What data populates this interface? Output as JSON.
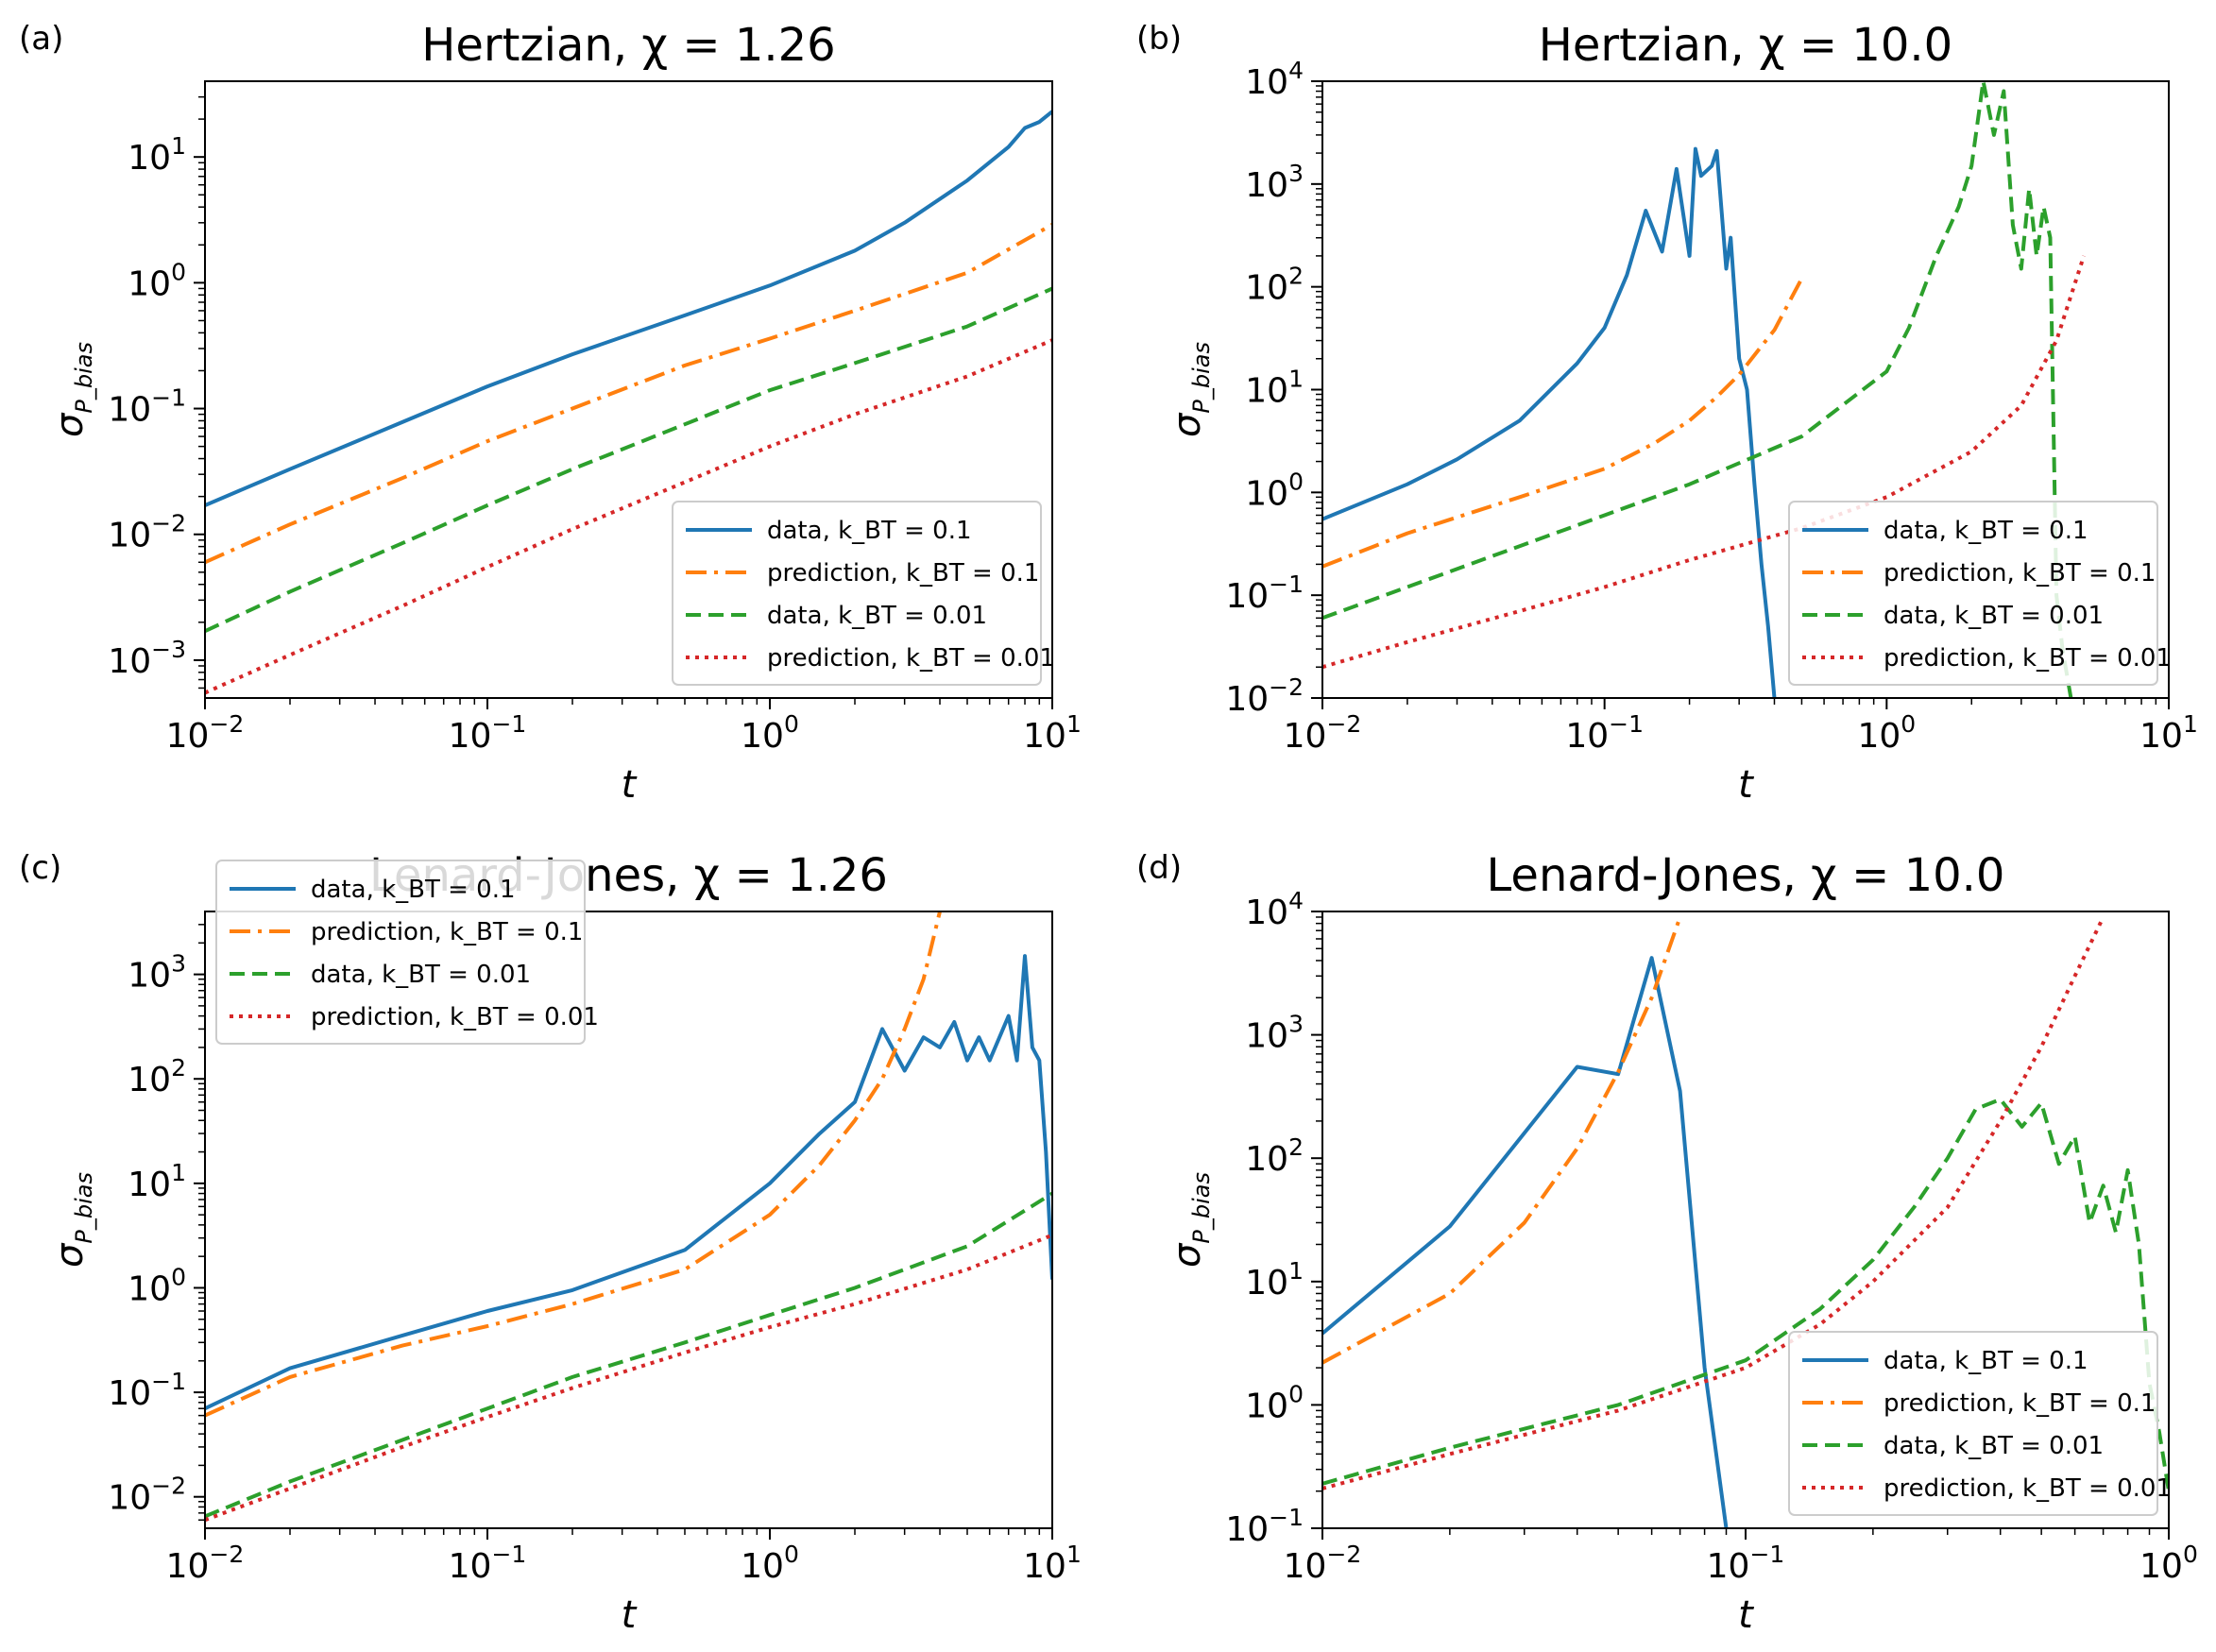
{
  "chart_data": [
    {
      "type": "line",
      "panel_label": "(a)",
      "title": "Hertzian, χ = 1.26",
      "xlabel": "t",
      "ylabel": "σ",
      "ylabel_sub": "P_bias",
      "xscale": "log",
      "yscale": "log",
      "xlim": [
        0.01,
        10
      ],
      "ylim": [
        0.0005,
        40
      ],
      "xticks": [
        {
          "value": 0.01,
          "label": "10",
          "exp": "−2"
        },
        {
          "value": 0.1,
          "label": "10",
          "exp": "−1"
        },
        {
          "value": 1,
          "label": "10",
          "exp": "0"
        },
        {
          "value": 10,
          "label": "10",
          "exp": "1"
        }
      ],
      "yticks": [
        {
          "value": 0.001,
          "label": "10",
          "exp": "−3"
        },
        {
          "value": 0.01,
          "label": "10",
          "exp": "−2"
        },
        {
          "value": 0.1,
          "label": "10",
          "exp": "−1"
        },
        {
          "value": 1,
          "label": "10",
          "exp": "0"
        },
        {
          "value": 10,
          "label": "10",
          "exp": "1"
        }
      ],
      "legend_position": "lower-right",
      "series": [
        {
          "name": "data, k_BT = 0.1",
          "style": "solid",
          "color": "#1f77b4",
          "x": [
            0.01,
            0.02,
            0.05,
            0.1,
            0.2,
            0.5,
            1,
            2,
            3,
            5,
            7,
            8,
            9,
            10
          ],
          "y": [
            0.017,
            0.033,
            0.078,
            0.15,
            0.27,
            0.55,
            0.95,
            1.8,
            3.0,
            6.5,
            12,
            17,
            19,
            23
          ]
        },
        {
          "name": "prediction, k_BT = 0.1",
          "style": "dashdot",
          "color": "#ff7f0e",
          "x": [
            0.01,
            0.02,
            0.05,
            0.1,
            0.2,
            0.5,
            1,
            2,
            5,
            10
          ],
          "y": [
            0.006,
            0.012,
            0.028,
            0.055,
            0.1,
            0.22,
            0.36,
            0.6,
            1.2,
            2.9
          ]
        },
        {
          "name": "data, k_BT = 0.01",
          "style": "dashed",
          "color": "#2ca02c",
          "x": [
            0.01,
            0.02,
            0.05,
            0.1,
            0.2,
            0.5,
            1,
            2,
            5,
            10
          ],
          "y": [
            0.0017,
            0.0035,
            0.0085,
            0.017,
            0.033,
            0.075,
            0.14,
            0.23,
            0.45,
            0.9
          ]
        },
        {
          "name": "prediction, k_BT = 0.01",
          "style": "dotted",
          "color": "#d62728",
          "x": [
            0.01,
            0.02,
            0.05,
            0.1,
            0.2,
            0.5,
            1,
            2,
            5,
            10
          ],
          "y": [
            0.00055,
            0.0011,
            0.0027,
            0.0055,
            0.011,
            0.026,
            0.05,
            0.09,
            0.18,
            0.35
          ]
        }
      ]
    },
    {
      "type": "line",
      "panel_label": "(b)",
      "title": "Hertzian, χ = 10.0",
      "xlabel": "t",
      "ylabel": "σ",
      "ylabel_sub": "P_bias",
      "xscale": "log",
      "yscale": "log",
      "xlim": [
        0.01,
        10
      ],
      "ylim": [
        0.01,
        10000
      ],
      "xticks": [
        {
          "value": 0.01,
          "label": "10",
          "exp": "−2"
        },
        {
          "value": 0.1,
          "label": "10",
          "exp": "−1"
        },
        {
          "value": 1,
          "label": "10",
          "exp": "0"
        },
        {
          "value": 10,
          "label": "10",
          "exp": "1"
        }
      ],
      "yticks": [
        {
          "value": 0.01,
          "label": "10",
          "exp": "−2"
        },
        {
          "value": 0.1,
          "label": "10",
          "exp": "−1"
        },
        {
          "value": 1,
          "label": "10",
          "exp": "0"
        },
        {
          "value": 10,
          "label": "10",
          "exp": "1"
        },
        {
          "value": 100,
          "label": "10",
          "exp": "2"
        },
        {
          "value": 1000,
          "label": "10",
          "exp": "3"
        },
        {
          "value": 10000,
          "label": "10",
          "exp": "4"
        }
      ],
      "legend_position": "lower-right",
      "series": [
        {
          "name": "data, k_BT = 0.1",
          "style": "solid",
          "color": "#1f77b4",
          "x": [
            0.01,
            0.02,
            0.03,
            0.05,
            0.08,
            0.1,
            0.12,
            0.14,
            0.16,
            0.18,
            0.2,
            0.21,
            0.22,
            0.24,
            0.25,
            0.27,
            0.28,
            0.3,
            0.32,
            0.34,
            0.36,
            0.38,
            0.4
          ],
          "y": [
            0.55,
            1.2,
            2.1,
            5.0,
            18,
            40,
            130,
            550,
            220,
            1400,
            200,
            2200,
            1200,
            1500,
            2100,
            150,
            300,
            20,
            10,
            1.2,
            0.2,
            0.05,
            0.01
          ]
        },
        {
          "name": "prediction, k_BT = 0.1",
          "style": "dashdot",
          "color": "#ff7f0e",
          "x": [
            0.01,
            0.02,
            0.05,
            0.1,
            0.15,
            0.2,
            0.25,
            0.3,
            0.35,
            0.4,
            0.45,
            0.5
          ],
          "y": [
            0.19,
            0.4,
            0.9,
            1.7,
            3.0,
            5.0,
            8.5,
            14,
            24,
            38,
            70,
            120
          ]
        },
        {
          "name": "data, k_BT = 0.01",
          "style": "dashed",
          "color": "#2ca02c",
          "x": [
            0.01,
            0.02,
            0.05,
            0.1,
            0.2,
            0.5,
            1,
            1.2,
            1.5,
            1.8,
            2.0,
            2.2,
            2.4,
            2.6,
            2.8,
            3.0,
            3.2,
            3.4,
            3.6,
            3.8,
            4.0,
            4.2,
            4.5
          ],
          "y": [
            0.06,
            0.12,
            0.3,
            0.6,
            1.2,
            3.5,
            15,
            40,
            200,
            600,
            1500,
            10000,
            3000,
            8000,
            400,
            150,
            900,
            200,
            600,
            300,
            0.1,
            0.03,
            0.01
          ]
        },
        {
          "name": "prediction, k_BT = 0.01",
          "style": "dotted",
          "color": "#d62728",
          "x": [
            0.01,
            0.02,
            0.05,
            0.1,
            0.2,
            0.5,
            1,
            2,
            3,
            4,
            5
          ],
          "y": [
            0.02,
            0.035,
            0.07,
            0.12,
            0.22,
            0.45,
            0.9,
            2.5,
            7,
            30,
            200
          ]
        }
      ]
    },
    {
      "type": "line",
      "panel_label": "(c)",
      "title": "Lenard-Jones, χ = 1.26",
      "xlabel": "t",
      "ylabel": "σ",
      "ylabel_sub": "P_bias",
      "xscale": "log",
      "yscale": "log",
      "xlim": [
        0.01,
        10
      ],
      "ylim": [
        0.005,
        4000
      ],
      "xticks": [
        {
          "value": 0.01,
          "label": "10",
          "exp": "−2"
        },
        {
          "value": 0.1,
          "label": "10",
          "exp": "−1"
        },
        {
          "value": 1,
          "label": "10",
          "exp": "0"
        },
        {
          "value": 10,
          "label": "10",
          "exp": "1"
        }
      ],
      "yticks": [
        {
          "value": 0.01,
          "label": "10",
          "exp": "−2"
        },
        {
          "value": 0.1,
          "label": "10",
          "exp": "−1"
        },
        {
          "value": 1,
          "label": "10",
          "exp": "0"
        },
        {
          "value": 10,
          "label": "10",
          "exp": "1"
        },
        {
          "value": 100,
          "label": "10",
          "exp": "2"
        },
        {
          "value": 1000,
          "label": "10",
          "exp": "3"
        }
      ],
      "legend_position": "upper-left",
      "series": [
        {
          "name": "data, k_BT = 0.1",
          "style": "solid",
          "color": "#1f77b4",
          "x": [
            0.01,
            0.02,
            0.05,
            0.1,
            0.2,
            0.5,
            1,
            1.5,
            2,
            2.5,
            3,
            3.5,
            4,
            4.5,
            5,
            5.5,
            6,
            7,
            7.5,
            8,
            8.5,
            9,
            9.5,
            10
          ],
          "y": [
            0.07,
            0.17,
            0.35,
            0.6,
            0.95,
            2.3,
            10,
            30,
            60,
            300,
            120,
            250,
            200,
            350,
            150,
            250,
            150,
            400,
            150,
            1500,
            200,
            150,
            20,
            1.2
          ]
        },
        {
          "name": "prediction, k_BT = 0.1",
          "style": "dashdot",
          "color": "#ff7f0e",
          "x": [
            0.01,
            0.02,
            0.05,
            0.1,
            0.2,
            0.5,
            1,
            1.5,
            2,
            2.5,
            3,
            3.5,
            4
          ],
          "y": [
            0.06,
            0.14,
            0.28,
            0.43,
            0.7,
            1.5,
            5,
            15,
            40,
            100,
            300,
            900,
            4000
          ]
        },
        {
          "name": "data, k_BT = 0.01",
          "style": "dashed",
          "color": "#2ca02c",
          "x": [
            0.01,
            0.02,
            0.05,
            0.1,
            0.2,
            0.5,
            1,
            2,
            5,
            10
          ],
          "y": [
            0.0065,
            0.014,
            0.035,
            0.07,
            0.14,
            0.3,
            0.55,
            1.0,
            2.5,
            8
          ]
        },
        {
          "name": "prediction, k_BT = 0.01",
          "style": "dotted",
          "color": "#d62728",
          "x": [
            0.01,
            0.02,
            0.05,
            0.1,
            0.2,
            0.5,
            1,
            2,
            5,
            10
          ],
          "y": [
            0.006,
            0.012,
            0.03,
            0.058,
            0.11,
            0.24,
            0.42,
            0.7,
            1.5,
            3.2
          ]
        }
      ]
    },
    {
      "type": "line",
      "panel_label": "(d)",
      "title": "Lenard-Jones, χ = 10.0",
      "xlabel": "t",
      "ylabel": "σ",
      "ylabel_sub": "P_bias",
      "xscale": "log",
      "yscale": "log",
      "xlim": [
        0.01,
        1
      ],
      "ylim": [
        0.1,
        10000
      ],
      "xticks": [
        {
          "value": 0.01,
          "label": "10",
          "exp": "−2"
        },
        {
          "value": 0.1,
          "label": "10",
          "exp": "−1"
        },
        {
          "value": 1,
          "label": "10",
          "exp": "0"
        }
      ],
      "yticks": [
        {
          "value": 0.1,
          "label": "10",
          "exp": "−1"
        },
        {
          "value": 1,
          "label": "10",
          "exp": "0"
        },
        {
          "value": 10,
          "label": "10",
          "exp": "1"
        },
        {
          "value": 100,
          "label": "10",
          "exp": "2"
        },
        {
          "value": 1000,
          "label": "10",
          "exp": "3"
        },
        {
          "value": 10000,
          "label": "10",
          "exp": "4"
        }
      ],
      "legend_position": "lower-right",
      "series": [
        {
          "name": "data, k_BT = 0.1",
          "style": "solid",
          "color": "#1f77b4",
          "x": [
            0.01,
            0.02,
            0.04,
            0.05,
            0.06,
            0.07,
            0.08,
            0.09
          ],
          "y": [
            3.8,
            28,
            550,
            480,
            4200,
            350,
            2.0,
            0.1
          ]
        },
        {
          "name": "prediction, k_BT = 0.1",
          "style": "dashdot",
          "color": "#ff7f0e",
          "x": [
            0.01,
            0.02,
            0.03,
            0.04,
            0.05,
            0.06,
            0.07
          ],
          "y": [
            2.2,
            8,
            30,
            120,
            500,
            2000,
            9000
          ]
        },
        {
          "name": "data, k_BT = 0.01",
          "style": "dashed",
          "color": "#2ca02c",
          "x": [
            0.01,
            0.02,
            0.05,
            0.1,
            0.15,
            0.2,
            0.25,
            0.3,
            0.35,
            0.4,
            0.45,
            0.5,
            0.55,
            0.6,
            0.65,
            0.7,
            0.75,
            0.8,
            0.85,
            0.9,
            0.95,
            1.0
          ],
          "y": [
            0.23,
            0.45,
            1.0,
            2.3,
            6,
            15,
            40,
            100,
            250,
            300,
            180,
            280,
            90,
            150,
            30,
            60,
            25,
            80,
            20,
            1.5,
            0.6,
            0.2
          ]
        },
        {
          "name": "prediction, k_BT = 0.01",
          "style": "dotted",
          "color": "#d62728",
          "x": [
            0.01,
            0.02,
            0.05,
            0.1,
            0.15,
            0.2,
            0.3,
            0.4,
            0.5,
            0.6,
            0.7
          ],
          "y": [
            0.21,
            0.4,
            0.9,
            2.0,
            4.5,
            10,
            40,
            200,
            800,
            3000,
            9000
          ]
        }
      ]
    }
  ]
}
